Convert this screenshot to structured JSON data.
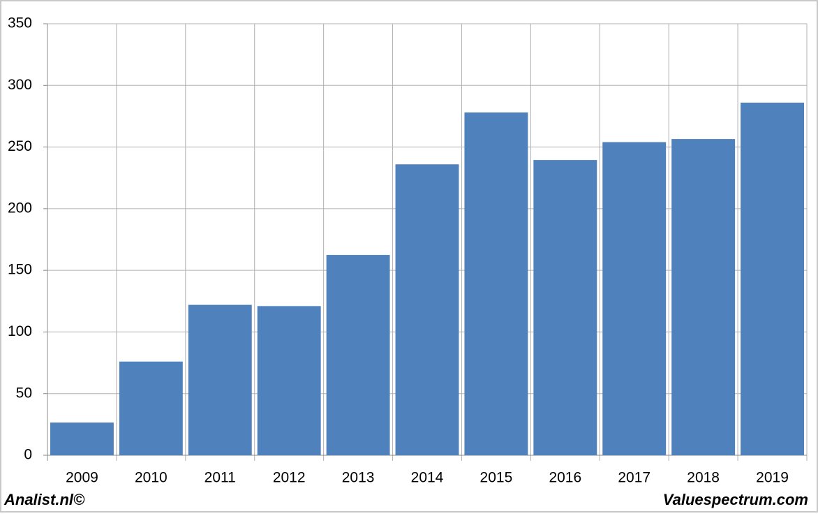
{
  "chart_data": {
    "type": "bar",
    "categories": [
      "2009",
      "2010",
      "2011",
      "2012",
      "2013",
      "2014",
      "2015",
      "2016",
      "2017",
      "2018",
      "2019"
    ],
    "values": [
      26.5,
      76,
      122,
      121,
      162.5,
      236,
      278,
      239.5,
      254,
      256.5,
      286
    ],
    "color": "#4f81bd",
    "ylim": [
      0,
      350
    ],
    "yticks": [
      0,
      50,
      100,
      150,
      200,
      250,
      300,
      350
    ],
    "grid": true,
    "footer_left": "Analist.nl©",
    "footer_right": "Valuespectrum.com"
  }
}
